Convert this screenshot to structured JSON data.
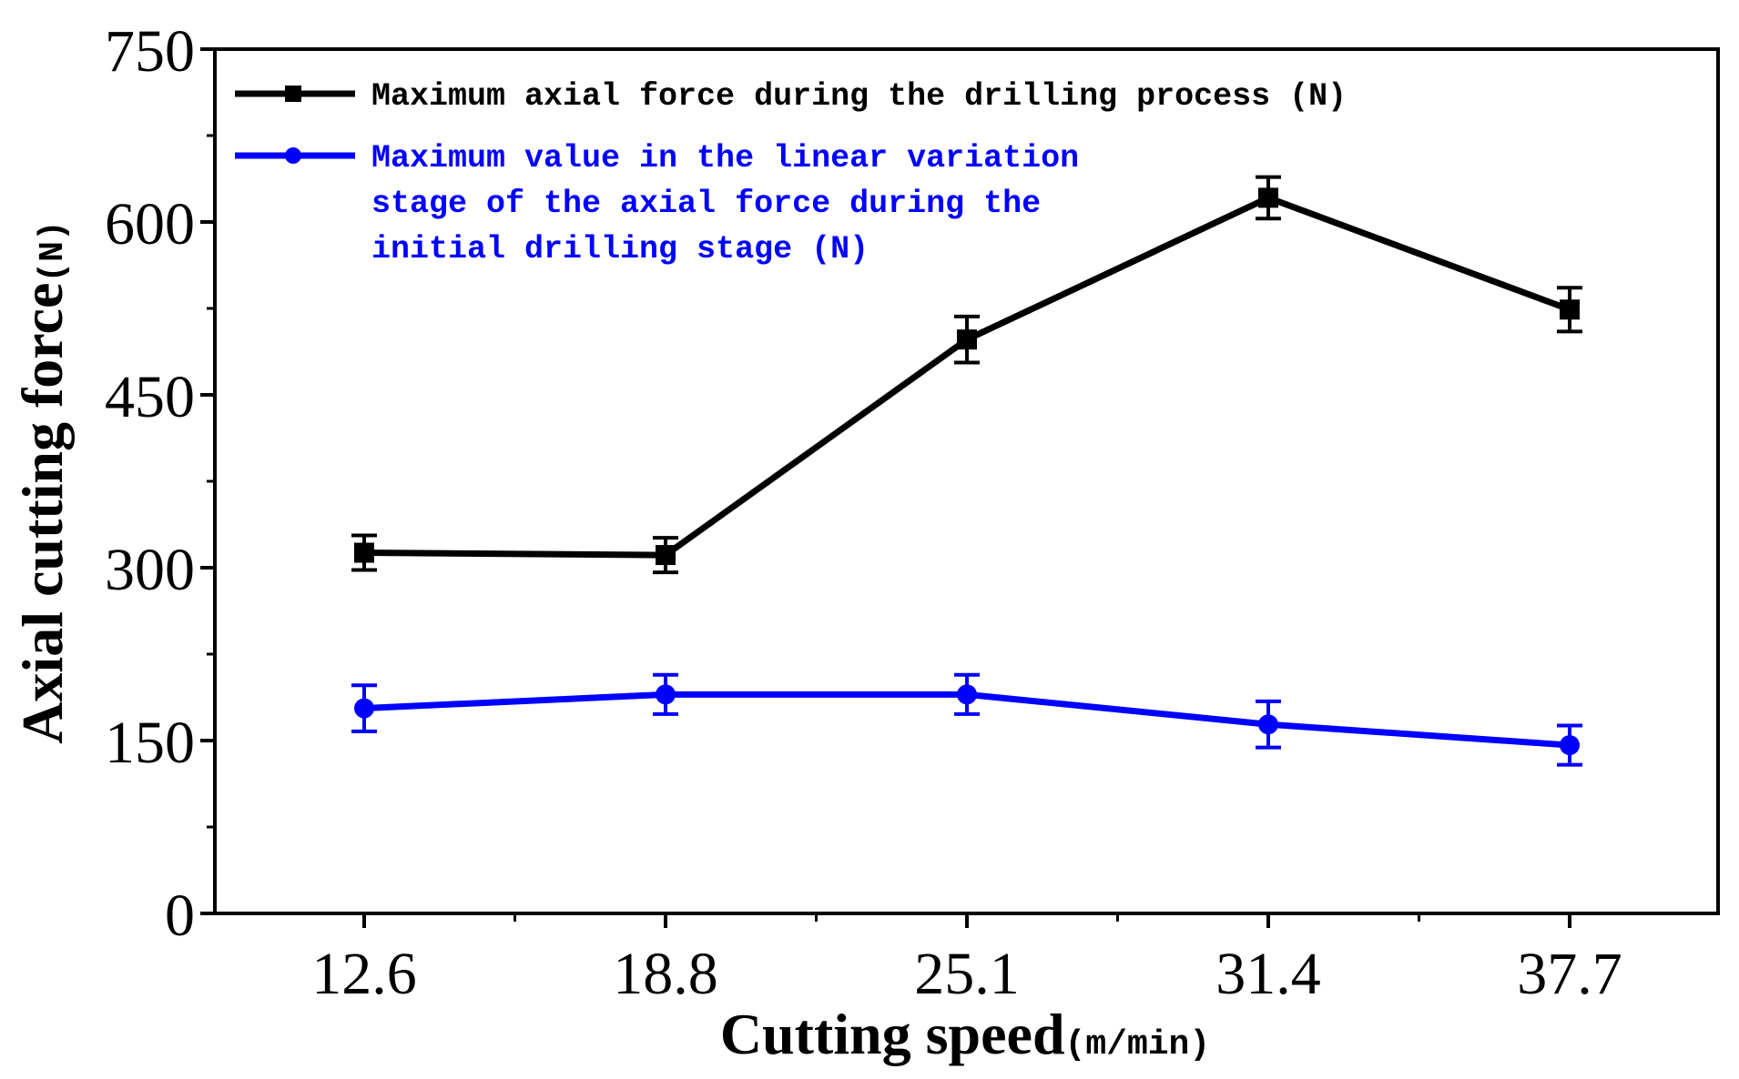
{
  "chart_data": {
    "type": "line",
    "title": "",
    "xlabel": "Cutting speed",
    "xlabel_unit": "(m/min)",
    "ylabel": "Axial cutting force",
    "ylabel_unit": "(N)",
    "categories": [
      "12.6",
      "18.8",
      "25.1",
      "31.4",
      "37.7"
    ],
    "ylim": [
      0,
      750
    ],
    "yticks": [
      0,
      150,
      300,
      450,
      600,
      750
    ],
    "yticks_labels": [
      "0",
      "150",
      "300",
      "450",
      "600",
      "750"
    ],
    "grid": false,
    "legend_position": "top-left",
    "series": [
      {
        "name": "Maximum axial force during the drilling process (N)",
        "legend_lines": [
          "Maximum axial force during the drilling process (N)"
        ],
        "color": "#000000",
        "marker": "square",
        "values": [
          313,
          311,
          498,
          621,
          524
        ],
        "errors": [
          15,
          15,
          20,
          18,
          19
        ]
      },
      {
        "name": "Maximum value in the linear variation stage of the axial force during the initial drilling stage (N)",
        "legend_lines": [
          "Maximum value in the linear variation",
          "stage of the axial force during the",
          "initial drilling stage (N)"
        ],
        "color": "#0000ff",
        "marker": "circle",
        "values": [
          178,
          190,
          190,
          164,
          146
        ],
        "errors": [
          20,
          17,
          17,
          20,
          17
        ]
      }
    ]
  }
}
